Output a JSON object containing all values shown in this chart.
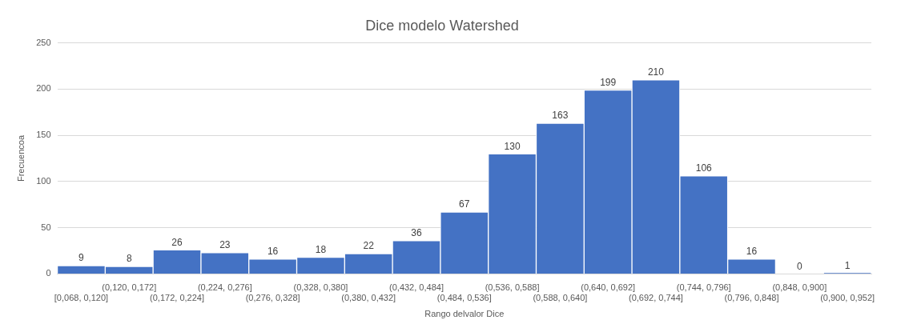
{
  "chart_data": {
    "type": "bar",
    "title": "Dice modelo Watershed",
    "xlabel": "Rango delvalor Dice",
    "ylabel": "Frecuencoa",
    "categories": [
      "[0,068, 0,120]",
      "(0,120, 0,172]",
      "(0,172, 0,224]",
      "(0,224, 0,276]",
      "(0,276, 0,328]",
      "(0,328, 0,380]",
      "(0,380, 0,432]",
      "(0,432, 0,484]",
      "(0,484, 0,536]",
      "(0,536, 0,588]",
      "(0,588, 0,640]",
      "(0,640, 0,692]",
      "(0,692, 0,744]",
      "(0,744, 0,796]",
      "(0,796, 0,848]",
      "(0,848, 0,900]",
      "(0,900, 0,952]"
    ],
    "values": [
      9,
      8,
      26,
      23,
      16,
      18,
      22,
      36,
      67,
      130,
      163,
      199,
      210,
      106,
      16,
      0,
      1
    ],
    "color": "#4472c4",
    "ylim": [
      0,
      250
    ],
    "yticks": [
      0,
      50,
      100,
      150,
      200,
      250
    ],
    "grid": "y",
    "data_labels": true,
    "legend": false
  }
}
